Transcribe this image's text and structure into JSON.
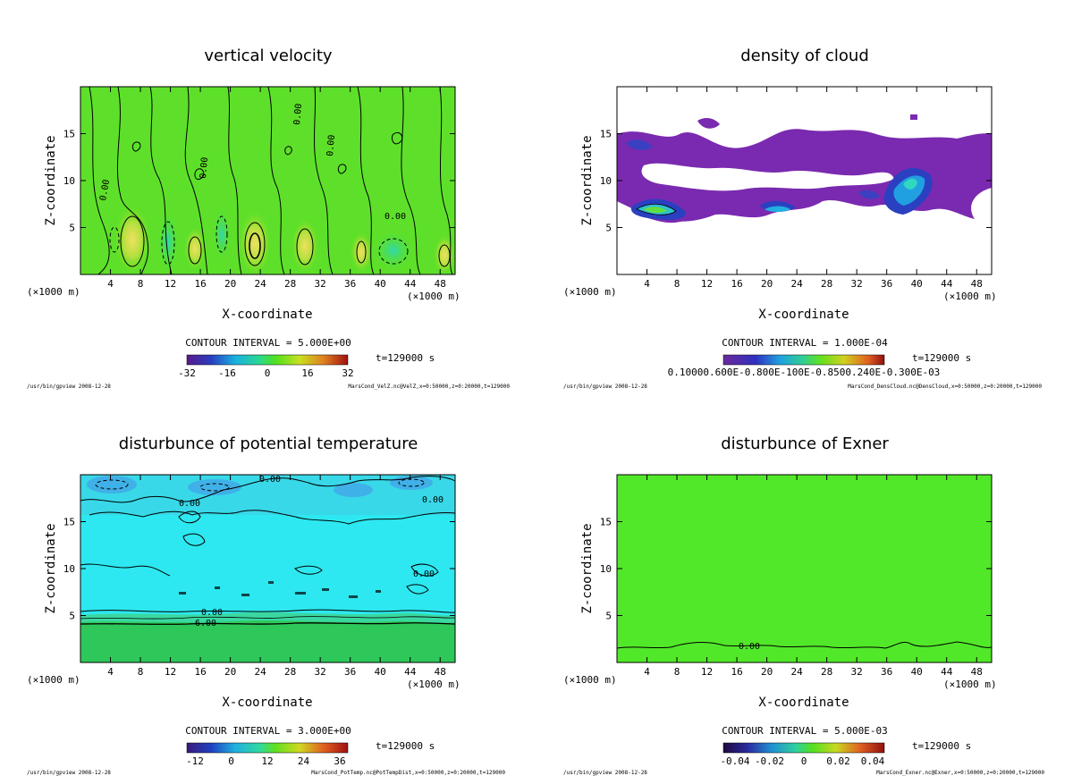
{
  "chart_data": [
    {
      "type": "heatmap",
      "title": "vertical velocity",
      "xlabel": "X-coordinate",
      "ylabel": "Z-coordinate",
      "x_unit": "(×1000 m)",
      "xlim": [
        0,
        50
      ],
      "ylim": [
        0,
        20
      ],
      "xticks": [
        4,
        8,
        12,
        16,
        20,
        24,
        28,
        32,
        36,
        40,
        44,
        48
      ],
      "yticks": [
        5,
        10,
        15
      ],
      "contour_interval": "CONTOUR INTERVAL = 5.000E+00",
      "time": "t=129000 s",
      "colorbar_ticks": [
        "-32",
        "-16",
        "0",
        "16",
        "32"
      ],
      "contour_labels": [
        "0.00",
        "0.00",
        "0.00",
        "0.00",
        "0.00"
      ],
      "footer_left": "/usr/bin/gpview  2008-12-28",
      "footer_right": "MarsCond_VelZ.nc@VelZ,x=0:50000,z=0:20000,t=129000"
    },
    {
      "type": "heatmap",
      "title": "density of cloud",
      "xlabel": "X-coordinate",
      "ylabel": "Z-coordinate",
      "x_unit": "(×1000 m)",
      "xlim": [
        0,
        50
      ],
      "ylim": [
        0,
        20
      ],
      "xticks": [
        4,
        8,
        12,
        16,
        20,
        24,
        28,
        32,
        36,
        40,
        44,
        48
      ],
      "yticks": [
        5,
        10,
        15
      ],
      "contour_interval": "CONTOUR INTERVAL = 1.000E-04",
      "time": "t=129000 s",
      "colorbar_ticks": [
        "0.10000.600E-0.800E-100E-0.8500.240E-0.300E-03"
      ],
      "footer_left": "/usr/bin/gpview  2008-12-28",
      "footer_right": "MarsCond_DensCloud.nc@DensCloud,x=0:50000,z=0:20000,t=129000"
    },
    {
      "type": "heatmap",
      "title": "disturbunce of potential temperature",
      "xlabel": "X-coordinate",
      "ylabel": "Z-coordinate",
      "x_unit": "(×1000 m)",
      "xlim": [
        0,
        50
      ],
      "ylim": [
        0,
        20
      ],
      "xticks": [
        4,
        8,
        12,
        16,
        20,
        24,
        28,
        32,
        36,
        40,
        44,
        48
      ],
      "yticks": [
        5,
        10,
        15
      ],
      "contour_interval": "CONTOUR INTERVAL = 3.000E+00",
      "time": "t=129000 s",
      "colorbar_ticks": [
        "-12",
        "0",
        "12",
        "24",
        "36"
      ],
      "contour_labels": [
        "0.00",
        "0.00",
        "0.00",
        "0.00",
        "0.00",
        "6.00"
      ],
      "footer_left": "/usr/bin/gpview  2008-12-28",
      "footer_right": "MarsCond_PotTemp.nc@PotTempDist,x=0:50000,z=0:20000,t=129000"
    },
    {
      "type": "heatmap",
      "title": "disturbunce of Exner",
      "xlabel": "X-coordinate",
      "ylabel": "Z-coordinate",
      "x_unit": "(×1000 m)",
      "xlim": [
        0,
        50
      ],
      "ylim": [
        0,
        20
      ],
      "xticks": [
        4,
        8,
        12,
        16,
        20,
        24,
        28,
        32,
        36,
        40,
        44,
        48
      ],
      "yticks": [
        5,
        10,
        15
      ],
      "contour_interval": "CONTOUR INTERVAL = 5.000E-03",
      "time": "t=129000 s",
      "colorbar_ticks": [
        "-0.04",
        "-0.02",
        "0",
        "0.02",
        "0.04"
      ],
      "contour_labels": [
        "0.00"
      ],
      "footer_left": "/usr/bin/gpview  2008-12-28",
      "footer_right": "MarsCond_Exner.nc@Exner,x=0:50000,z=0:20000,t=129000"
    }
  ]
}
